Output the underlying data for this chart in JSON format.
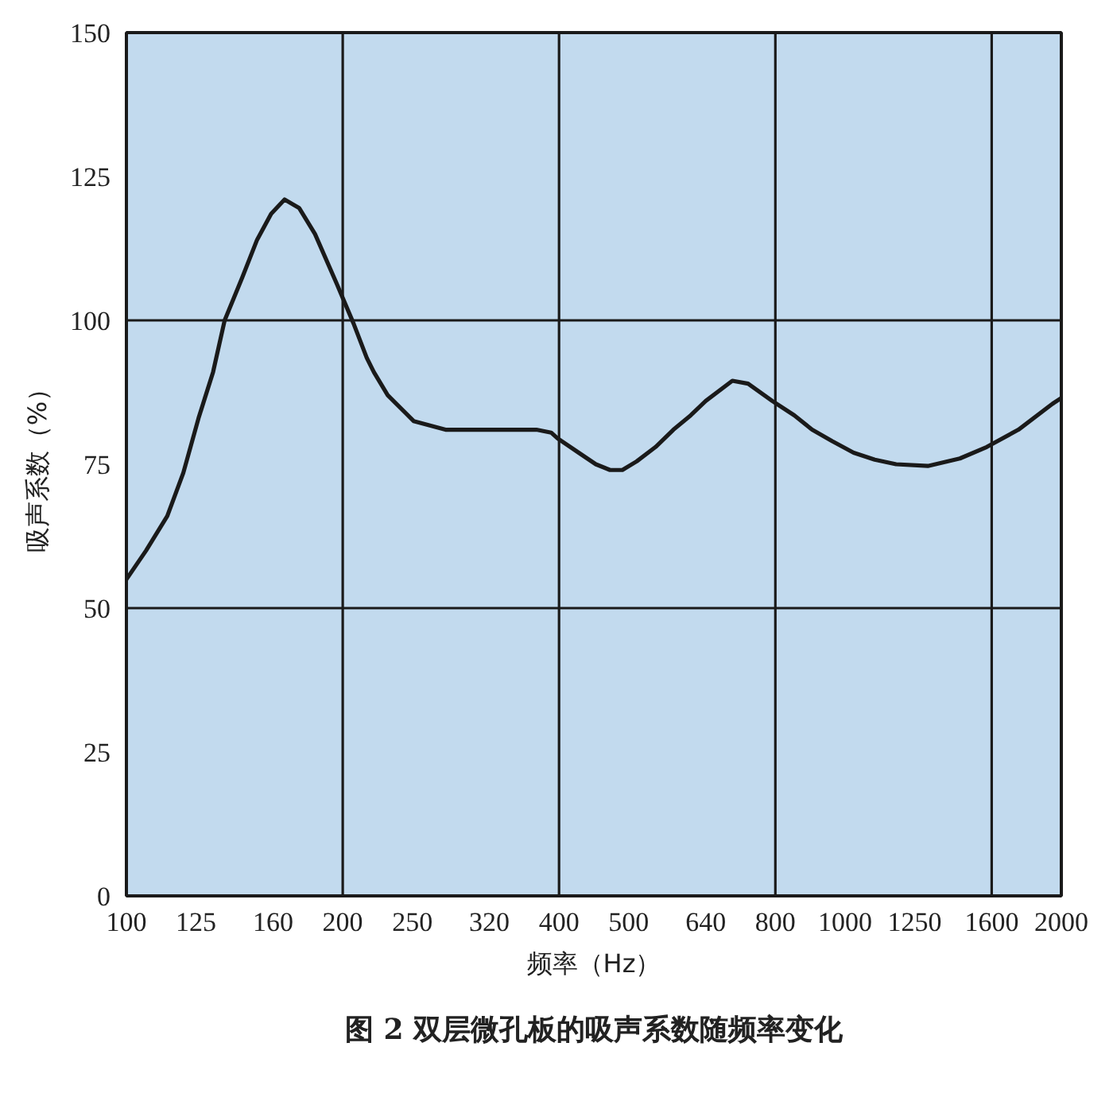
{
  "chart_data": {
    "type": "line",
    "title": "图 2 双层微孔板的吸声系数随频率变化",
    "xlabel": "频率（Hz）",
    "ylabel": "吸声系数（%）",
    "log": "x",
    "x": [
      100,
      106.5,
      114,
      120,
      126,
      132,
      137,
      145,
      152,
      159,
      166,
      174,
      183,
      196,
      207,
      216,
      221,
      231,
      251,
      278,
      330,
      372,
      390,
      398,
      426,
      450,
      471,
      490,
      513,
      545,
      577,
      610,
      640,
      697,
      733,
      792,
      850,
      900,
      960,
      1028,
      1100,
      1178,
      1304,
      1445,
      1575,
      1743,
      1944,
      2000
    ],
    "series": [
      {
        "color": "#1a1a1a",
        "values": [
          55,
          60,
          66,
          73.5,
          83,
          91,
          100,
          107.5,
          114,
          118.5,
          121,
          119.5,
          115,
          106.5,
          99.5,
          93.5,
          91,
          87,
          82.5,
          81,
          81,
          81,
          80.5,
          79.5,
          77,
          75,
          74,
          74,
          75.5,
          78,
          81,
          83.5,
          86,
          89.5,
          89,
          86,
          83.5,
          81,
          79,
          77,
          75.8,
          75,
          74.7,
          76,
          78,
          81,
          85.5,
          86.5
        ]
      }
    ],
    "xlim": [
      100,
      2000
    ],
    "xticks": [
      100,
      125,
      160,
      200,
      250,
      320,
      400,
      500,
      640,
      800,
      1000,
      1250,
      1600,
      2000
    ],
    "ylim": [
      0,
      150
    ],
    "yticks": [
      0,
      25,
      50,
      75,
      100,
      125,
      150
    ],
    "line_style": "solid",
    "ref_lines": [
      {
        "axis": "x",
        "value": 200,
        "color": "#1a1a1a"
      },
      {
        "axis": "x",
        "value": 400,
        "color": "#1a1a1a"
      },
      {
        "axis": "x",
        "value": 800,
        "color": "#1a1a1a"
      },
      {
        "axis": "x",
        "value": 1600,
        "color": "#1a1a1a"
      },
      {
        "axis": "y",
        "value": 50,
        "color": "#1a1a1a"
      },
      {
        "axis": "y",
        "value": 100,
        "color": "#1a1a1a"
      }
    ]
  }
}
